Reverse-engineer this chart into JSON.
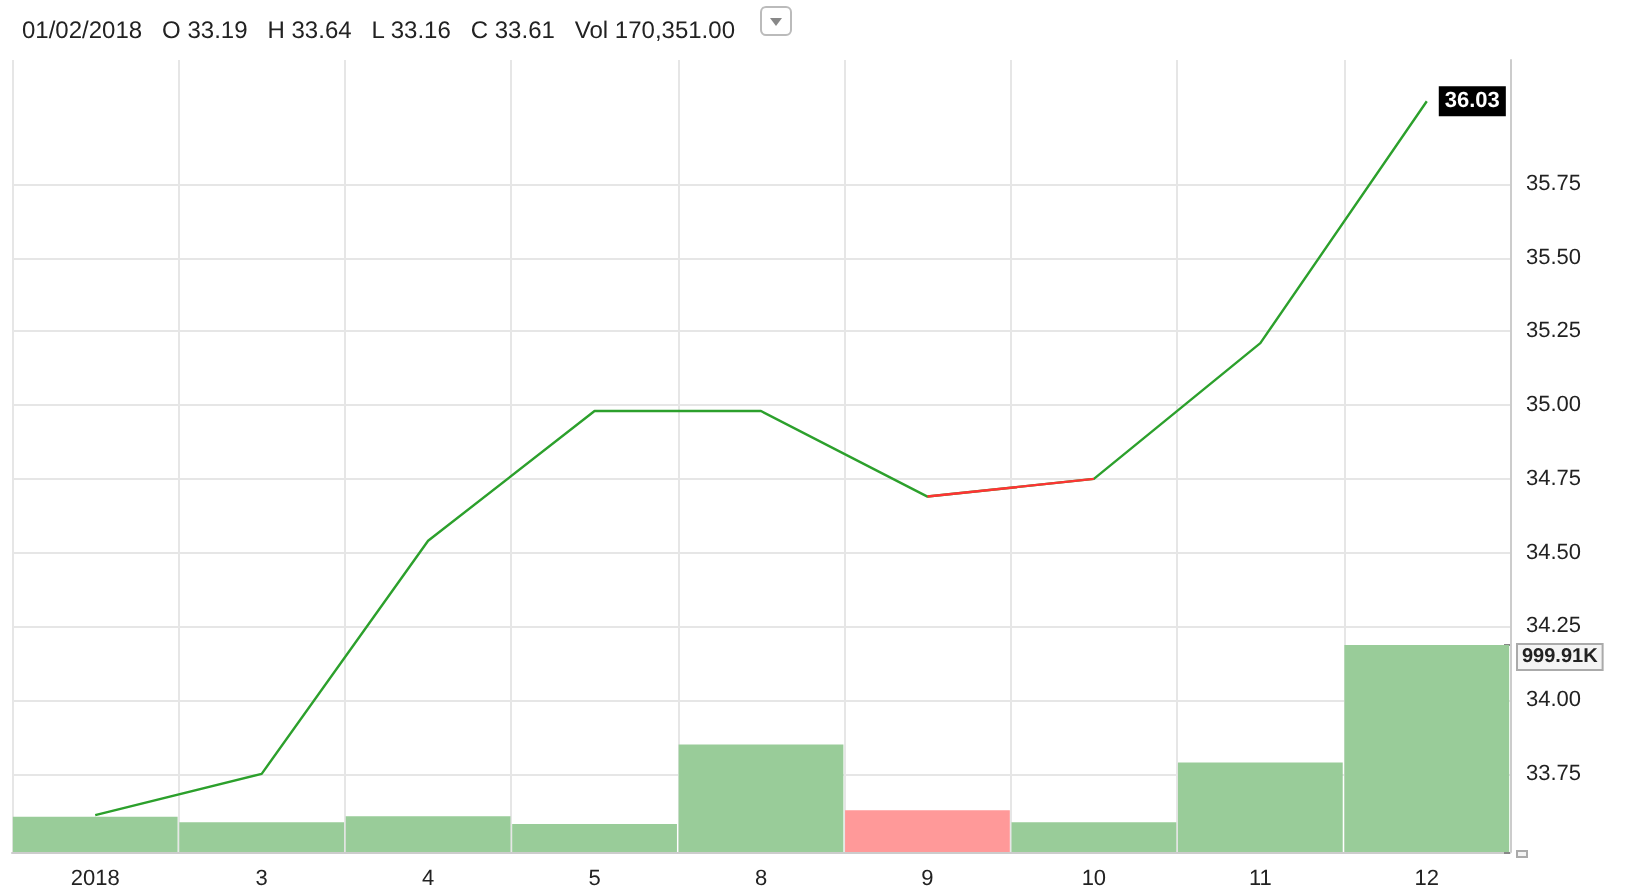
{
  "chart_data": {
    "type": "line",
    "title": "01/02/2018   O 33.19   H 33.64   L 33.16   C 33.61   Vol 170,351.00",
    "categories": [
      "2018",
      "3",
      "4",
      "5",
      "8",
      "9",
      "10",
      "11",
      "12"
    ],
    "series": [
      {
        "color": "#2ca02c",
        "values": [
          33.61,
          33.75,
          34.54,
          34.98,
          34.98,
          34.69,
          34.75,
          35.21,
          36.03
        ],
        "value_labels": [
          null,
          null,
          null,
          null,
          null,
          null,
          null,
          null,
          "36.03"
        ]
      },
      {
        "color": "#ff3333",
        "values": [
          null,
          null,
          null,
          null,
          null,
          34.69,
          34.75,
          null,
          null
        ]
      },
      {
        "type": "bar",
        "axis": "y2",
        "colors": [
          "#99cc99",
          "#99cc99",
          "#99cc99",
          "#99cc99",
          "#99cc99",
          "#ff9999",
          "#99cc99",
          "#99cc99",
          "#99cc99"
        ],
        "values": [
          170,
          144,
          173,
          135,
          519,
          202,
          144,
          433,
          999.91
        ]
      }
    ],
    "ylim": [
      33.485,
      36.17
    ],
    "yticks": [
      33.75,
      {
        "value": 34,
        "label": "34.00"
      },
      34.25,
      {
        "value": 34.5,
        "label": "34.50"
      },
      34.75,
      {
        "value": 35,
        "label": "35.00"
      },
      35.25,
      {
        "value": 35.5,
        "label": "35.50"
      },
      35.75
    ],
    "y2lim": [
      0,
      3827
    ],
    "y2ticks": [
      {
        "value": 0,
        "label": null
      },
      {
        "value": 999.91,
        "label": "999.91K"
      }
    ],
    "grid": true
  }
}
